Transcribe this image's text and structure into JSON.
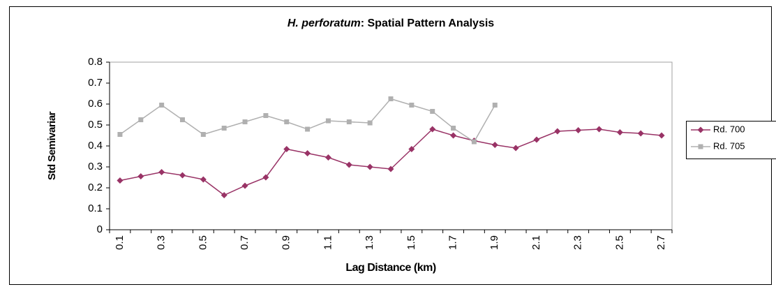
{
  "chart_data": {
    "type": "line",
    "title": [
      "H. perforatum",
      ": Spatial Pattern Analysis"
    ],
    "x_label": "Lag Distance (km)",
    "y_label": "Std Semivariar",
    "categories": [
      "0.1",
      null,
      "0.3",
      null,
      "0.5",
      null,
      "0.7",
      null,
      "0.9",
      null,
      "1.1",
      null,
      "1.3",
      null,
      "1.5",
      null,
      "1.7",
      null,
      "1.9",
      null,
      "2.1",
      null,
      "2.3",
      null,
      "2.5",
      null,
      "2.7"
    ],
    "series": [
      {
        "name": "Rd. 700",
        "color": "#993366",
        "marker": "diamond",
        "values": [
          0.235,
          0.255,
          0.275,
          0.26,
          0.24,
          0.165,
          0.21,
          0.25,
          0.385,
          0.365,
          0.345,
          0.31,
          0.3,
          0.29,
          0.385,
          0.48,
          0.45,
          0.425,
          0.405,
          0.39,
          0.43,
          0.47,
          0.475,
          0.48,
          0.465,
          0.46,
          0.45
        ]
      },
      {
        "name": "Rd. 705",
        "color": "#b0b0b0",
        "marker": "square",
        "values": [
          0.455,
          0.525,
          0.595,
          0.525,
          0.455,
          0.485,
          0.515,
          0.545,
          0.515,
          0.48,
          0.52,
          0.515,
          0.51,
          0.625,
          0.595,
          0.565,
          0.485,
          0.42,
          0.595,
          null,
          null,
          null,
          null,
          null,
          null,
          null,
          null
        ]
      }
    ],
    "ylim": [
      0,
      0.8
    ],
    "yticks": [
      {
        "value": 0,
        "label": "0"
      },
      0.1,
      0.2,
      0.3,
      0.4,
      0.5,
      0.6,
      0.7,
      0.8
    ],
    "legend": "right"
  }
}
